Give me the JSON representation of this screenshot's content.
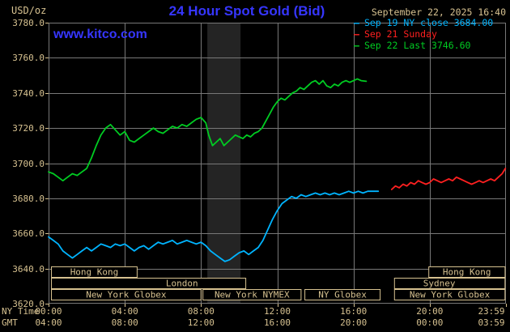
{
  "header": {
    "unit": "USD/oz",
    "title": "24 Hour Spot Gold (Bid)",
    "timestamp": "September 22, 2025 16:40",
    "watermark": "www.kitco.com"
  },
  "colors": {
    "background": "#000000",
    "title_blue": "#3636ff",
    "axis_tan": "#d6c190",
    "grid_gray": "#787878",
    "band_gray": "#242424",
    "cyan": "#00b4ff",
    "red": "#ff2020",
    "green": "#00cc22"
  },
  "legend": [
    {
      "key": "sep19",
      "label": "Sep 19 NY close 3684.00",
      "color_key": "cyan"
    },
    {
      "key": "sep21",
      "label": "Sep 21 Sunday",
      "color_key": "red"
    },
    {
      "key": "sep22",
      "label": "Sep 22 Last 3746.60",
      "color_key": "green"
    }
  ],
  "axes": {
    "x_label_top": "NY Time",
    "x_label_bottom": "GMT",
    "ny_ticks": [
      "00:00",
      "04:00",
      "08:00",
      "12:00",
      "16:00",
      "20:00",
      "23:59"
    ],
    "gmt_ticks": [
      "04:00",
      "08:00",
      "12:00",
      "16:00",
      "20:00",
      "00:00",
      "03:59"
    ],
    "y_ticks": [
      "3780.0",
      "3760.0",
      "3740.0",
      "3720.0",
      "3700.0",
      "3680.0",
      "3660.0",
      "3640.0",
      "3620.0"
    ]
  },
  "chart_data": {
    "type": "line",
    "title": "24 Hour Spot Gold (Bid)",
    "xlabel": "NY Time",
    "ylabel": "USD/oz",
    "ylim": [
      3620,
      3780
    ],
    "xlim_hours": [
      0,
      24
    ],
    "x_tick_hours": [
      0,
      4,
      8,
      12,
      16,
      20,
      23.983
    ],
    "grid": true,
    "legend_position": "top-right",
    "shaded_band_hours": [
      8.33,
      10.07
    ],
    "series": [
      {
        "key": "sep22",
        "name": "Sep 22 Last 3746.60",
        "color": "green",
        "last_value": 3746.6,
        "points": [
          [
            0,
            3695
          ],
          [
            0.25,
            3694
          ],
          [
            0.5,
            3692
          ],
          [
            0.75,
            3690
          ],
          [
            1,
            3692
          ],
          [
            1.25,
            3694
          ],
          [
            1.5,
            3693
          ],
          [
            1.75,
            3695
          ],
          [
            2,
            3697
          ],
          [
            2.25,
            3703
          ],
          [
            2.5,
            3710
          ],
          [
            2.75,
            3716
          ],
          [
            3,
            3720
          ],
          [
            3.25,
            3722
          ],
          [
            3.5,
            3719
          ],
          [
            3.75,
            3716
          ],
          [
            4,
            3718
          ],
          [
            4.25,
            3713
          ],
          [
            4.5,
            3712
          ],
          [
            4.75,
            3714
          ],
          [
            5,
            3716
          ],
          [
            5.25,
            3718
          ],
          [
            5.5,
            3720
          ],
          [
            5.75,
            3718
          ],
          [
            6,
            3717
          ],
          [
            6.25,
            3719
          ],
          [
            6.5,
            3721
          ],
          [
            6.75,
            3720
          ],
          [
            7,
            3722
          ],
          [
            7.25,
            3721
          ],
          [
            7.5,
            3723
          ],
          [
            7.75,
            3725
          ],
          [
            8,
            3726
          ],
          [
            8.25,
            3723
          ],
          [
            8.4,
            3716
          ],
          [
            8.6,
            3710
          ],
          [
            8.8,
            3712
          ],
          [
            9,
            3714
          ],
          [
            9.2,
            3710
          ],
          [
            9.4,
            3712
          ],
          [
            9.6,
            3714
          ],
          [
            9.8,
            3716
          ],
          [
            10,
            3715
          ],
          [
            10.2,
            3714
          ],
          [
            10.4,
            3716
          ],
          [
            10.6,
            3715
          ],
          [
            10.8,
            3717
          ],
          [
            11,
            3718
          ],
          [
            11.2,
            3720
          ],
          [
            11.4,
            3724
          ],
          [
            11.6,
            3728
          ],
          [
            11.8,
            3732
          ],
          [
            12,
            3735
          ],
          [
            12.2,
            3737
          ],
          [
            12.4,
            3736
          ],
          [
            12.6,
            3738
          ],
          [
            12.8,
            3740
          ],
          [
            13,
            3741
          ],
          [
            13.2,
            3743
          ],
          [
            13.4,
            3742
          ],
          [
            13.6,
            3744
          ],
          [
            13.8,
            3746
          ],
          [
            14,
            3747
          ],
          [
            14.2,
            3745
          ],
          [
            14.4,
            3747
          ],
          [
            14.6,
            3744
          ],
          [
            14.8,
            3743
          ],
          [
            15,
            3745
          ],
          [
            15.2,
            3744
          ],
          [
            15.4,
            3746
          ],
          [
            15.6,
            3747
          ],
          [
            15.8,
            3746
          ],
          [
            16,
            3747
          ],
          [
            16.2,
            3748
          ],
          [
            16.4,
            3747
          ],
          [
            16.67,
            3746.6
          ]
        ]
      },
      {
        "key": "sep19",
        "name": "Sep 19 NY close 3684.00",
        "color": "cyan",
        "last_value": 3684.0,
        "points": [
          [
            0,
            3658
          ],
          [
            0.25,
            3656
          ],
          [
            0.5,
            3654
          ],
          [
            0.75,
            3650
          ],
          [
            1,
            3648
          ],
          [
            1.25,
            3646
          ],
          [
            1.5,
            3648
          ],
          [
            1.75,
            3650
          ],
          [
            2,
            3652
          ],
          [
            2.25,
            3650
          ],
          [
            2.5,
            3652
          ],
          [
            2.75,
            3654
          ],
          [
            3,
            3653
          ],
          [
            3.25,
            3652
          ],
          [
            3.5,
            3654
          ],
          [
            3.75,
            3653
          ],
          [
            4,
            3654
          ],
          [
            4.25,
            3652
          ],
          [
            4.5,
            3650
          ],
          [
            4.75,
            3652
          ],
          [
            5,
            3653
          ],
          [
            5.25,
            3651
          ],
          [
            5.5,
            3653
          ],
          [
            5.75,
            3655
          ],
          [
            6,
            3654
          ],
          [
            6.25,
            3655
          ],
          [
            6.5,
            3656
          ],
          [
            6.75,
            3654
          ],
          [
            7,
            3655
          ],
          [
            7.25,
            3656
          ],
          [
            7.5,
            3655
          ],
          [
            7.75,
            3654
          ],
          [
            8,
            3655
          ],
          [
            8.25,
            3653
          ],
          [
            8.5,
            3650
          ],
          [
            8.75,
            3648
          ],
          [
            9,
            3646
          ],
          [
            9.25,
            3644
          ],
          [
            9.5,
            3645
          ],
          [
            9.75,
            3647
          ],
          [
            10,
            3649
          ],
          [
            10.25,
            3650
          ],
          [
            10.5,
            3648
          ],
          [
            10.75,
            3650
          ],
          [
            11,
            3652
          ],
          [
            11.25,
            3656
          ],
          [
            11.5,
            3662
          ],
          [
            11.75,
            3668
          ],
          [
            12,
            3673
          ],
          [
            12.25,
            3677
          ],
          [
            12.5,
            3679
          ],
          [
            12.75,
            3681
          ],
          [
            13,
            3680
          ],
          [
            13.25,
            3682
          ],
          [
            13.5,
            3681
          ],
          [
            13.75,
            3682
          ],
          [
            14,
            3683
          ],
          [
            14.25,
            3682
          ],
          [
            14.5,
            3683
          ],
          [
            14.75,
            3682
          ],
          [
            15,
            3683
          ],
          [
            15.25,
            3682
          ],
          [
            15.5,
            3683
          ],
          [
            15.75,
            3684
          ],
          [
            16,
            3683
          ],
          [
            16.25,
            3684
          ],
          [
            16.5,
            3683
          ],
          [
            16.75,
            3684
          ],
          [
            17,
            3684
          ],
          [
            17.3,
            3684
          ]
        ]
      },
      {
        "key": "sep21",
        "name": "Sep 21 Sunday",
        "color": "red",
        "points": [
          [
            18,
            3685
          ],
          [
            18.2,
            3687
          ],
          [
            18.4,
            3686
          ],
          [
            18.6,
            3688
          ],
          [
            18.8,
            3687
          ],
          [
            19,
            3689
          ],
          [
            19.2,
            3688
          ],
          [
            19.4,
            3690
          ],
          [
            19.6,
            3689
          ],
          [
            19.8,
            3688
          ],
          [
            20,
            3689
          ],
          [
            20.2,
            3691
          ],
          [
            20.4,
            3690
          ],
          [
            20.6,
            3689
          ],
          [
            20.8,
            3690
          ],
          [
            21,
            3691
          ],
          [
            21.2,
            3690
          ],
          [
            21.4,
            3692
          ],
          [
            21.6,
            3691
          ],
          [
            21.8,
            3690
          ],
          [
            22,
            3689
          ],
          [
            22.2,
            3688
          ],
          [
            22.4,
            3689
          ],
          [
            22.6,
            3690
          ],
          [
            22.8,
            3689
          ],
          [
            23,
            3690
          ],
          [
            23.2,
            3691
          ],
          [
            23.4,
            3690
          ],
          [
            23.6,
            3692
          ],
          [
            23.8,
            3694
          ],
          [
            23.97,
            3697
          ]
        ]
      }
    ],
    "sessions": [
      {
        "row": 0,
        "label": "Hong Kong",
        "start": 0.15,
        "end": 4.65
      },
      {
        "row": 0,
        "label": "Hong Kong",
        "start": 19.95,
        "end": 23.95
      },
      {
        "row": 1,
        "label": "London",
        "start": 0.15,
        "end": 10.35,
        "label_hour": 7.0
      },
      {
        "row": 1,
        "label": "Sydney",
        "start": 18.15,
        "end": 23.95,
        "label_hour": 20.5
      },
      {
        "row": 2,
        "label": "New York Globex",
        "start": 0.15,
        "end": 8.0
      },
      {
        "row": 2,
        "label": "New York NYMEX",
        "start": 8.1,
        "end": 13.25
      },
      {
        "row": 2,
        "label": "NY Globex",
        "start": 13.45,
        "end": 17.4
      },
      {
        "row": 2,
        "label": "New York Globex",
        "start": 18.15,
        "end": 23.95
      }
    ]
  }
}
